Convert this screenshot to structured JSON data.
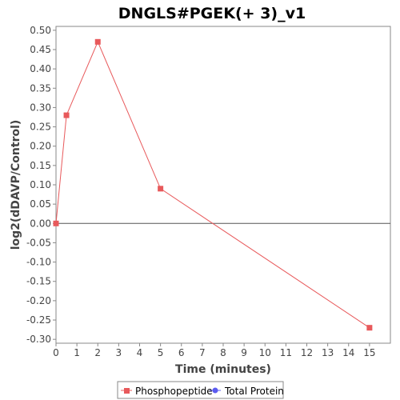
{
  "chart_data": {
    "type": "line",
    "title": "DNGLS#PGEK(+ 3)_v1",
    "xlabel": "Time (minutes)",
    "ylabel": "log2(dDAVP/Control)",
    "xlim": [
      0,
      16
    ],
    "ylim": [
      -0.31,
      0.51
    ],
    "x_ticks": [
      0,
      1,
      2,
      3,
      4,
      5,
      6,
      7,
      8,
      9,
      10,
      11,
      12,
      13,
      14,
      15
    ],
    "y_ticks": [
      0.5,
      0.45,
      0.4,
      0.35,
      0.3,
      0.25,
      0.2,
      0.15,
      0.1,
      0.05,
      0.0,
      -0.05,
      -0.1,
      -0.15,
      -0.2,
      -0.25,
      -0.3
    ],
    "y_tick_labels": [
      "0.50",
      "0.45",
      "0.40",
      "0.35",
      "0.30",
      "0.25",
      "0.20",
      "0.15",
      "0.10",
      "0.05",
      "0.00",
      "-0.05",
      "-0.10",
      "-0.15",
      "-0.20",
      "-0.25",
      "-0.30"
    ],
    "grid": false,
    "zero_line": true,
    "legend_position": "bottom",
    "series": [
      {
        "name": "Phosphopeptide",
        "color": "#e8595b",
        "marker": "square",
        "x": [
          0,
          0.5,
          2,
          5,
          15
        ],
        "y": [
          0.0,
          0.28,
          0.47,
          0.09,
          -0.27
        ]
      },
      {
        "name": "Total Protein",
        "color": "#5b5bf0",
        "marker": "circle",
        "x": [],
        "y": []
      }
    ]
  }
}
